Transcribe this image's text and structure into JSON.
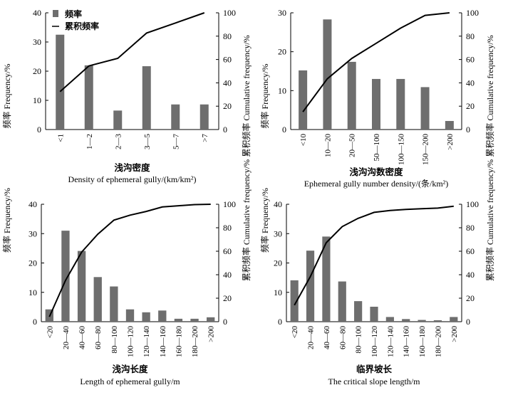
{
  "y_left_label": "频率 Frequency/%",
  "y_right_label": "累积频率 Cumulative frequency/%",
  "legend": {
    "bar_label": "频率",
    "line_label": "累积频率"
  },
  "chart_data": [
    {
      "type": "bar",
      "xlabel_cn": "浅沟密度",
      "xlabel_en": "Density of ephemeral gully/(km/km²)",
      "categories": [
        "<1",
        "1—2",
        "2—3",
        "3—5",
        "5—7",
        ">7"
      ],
      "series": [
        {
          "name": "频率",
          "type": "bar",
          "axis": "left",
          "values": [
            32.5,
            22,
            6.5,
            21.7,
            8.6,
            8.6
          ]
        },
        {
          "name": "累积频率",
          "type": "line",
          "axis": "right",
          "values": [
            32.5,
            54.5,
            61,
            82.7,
            91.3,
            100
          ]
        }
      ],
      "ylim_left": [
        0,
        40
      ],
      "yticks_left": [
        0,
        10,
        20,
        30,
        40
      ],
      "ylim_right": [
        0,
        100
      ],
      "yticks_right": [
        0,
        20,
        40,
        60,
        80,
        100
      ],
      "grid": false,
      "legend_position": "top-left"
    },
    {
      "type": "bar",
      "xlabel_cn": "浅沟沟数密度",
      "xlabel_en": "Ephemeral gully number density/(条/km²)",
      "categories": [
        "<10",
        "10—20",
        "20—50",
        "50—100",
        "100—150",
        "150—200",
        ">200"
      ],
      "series": [
        {
          "name": "频率",
          "type": "bar",
          "axis": "left",
          "values": [
            15.2,
            28.3,
            17.4,
            13,
            13,
            10.9,
            2.2
          ]
        },
        {
          "name": "累积频率",
          "type": "line",
          "axis": "right",
          "values": [
            15.2,
            43.5,
            60.9,
            73.9,
            86.9,
            97.8,
            100
          ]
        }
      ],
      "ylim_left": [
        0,
        30
      ],
      "yticks_left": [
        0,
        10,
        20,
        30
      ],
      "ylim_right": [
        0,
        100
      ],
      "yticks_right": [
        0,
        20,
        40,
        60,
        80,
        100
      ],
      "grid": false
    },
    {
      "type": "bar",
      "xlabel_cn": "浅沟长度",
      "xlabel_en": "Length of ephemeral gully/m",
      "categories": [
        "<20",
        "20—40",
        "40—60",
        "60—80",
        "80—100",
        "100—120",
        "120—140",
        "140—160",
        "160—180",
        "180—200",
        ">200"
      ],
      "series": [
        {
          "name": "频率",
          "type": "bar",
          "axis": "left",
          "values": [
            4.2,
            31,
            24.1,
            15.2,
            12,
            4.2,
            3.2,
            3.8,
            1,
            1,
            1.5
          ]
        },
        {
          "name": "累积频率",
          "type": "line",
          "axis": "right",
          "values": [
            4.2,
            35.2,
            59.3,
            74.5,
            86.5,
            90.7,
            93.9,
            97.7,
            98.7,
            99.7,
            100
          ]
        }
      ],
      "ylim_left": [
        0,
        40
      ],
      "yticks_left": [
        0,
        10,
        20,
        30,
        40
      ],
      "ylim_right": [
        0,
        100
      ],
      "yticks_right": [
        0,
        20,
        40,
        60,
        80,
        100
      ],
      "grid": false
    },
    {
      "type": "bar",
      "xlabel_cn": "临界坡长",
      "xlabel_en": "The critical slope length/m",
      "categories": [
        "<20",
        "20—40",
        "40—60",
        "60—80",
        "80—100",
        "100—120",
        "120—140",
        "140—160",
        "160—180",
        "180—200",
        ">200"
      ],
      "series": [
        {
          "name": "频率",
          "type": "bar",
          "axis": "left",
          "values": [
            14.1,
            24.2,
            29,
            13.7,
            7,
            5.1,
            1.6,
            0.9,
            0.6,
            0.5,
            1.6
          ]
        },
        {
          "name": "累积频率",
          "type": "line",
          "axis": "right",
          "values": [
            14.1,
            38.3,
            67.3,
            81,
            88,
            93.1,
            94.7,
            95.6,
            96.2,
            96.7,
            98.3
          ]
        }
      ],
      "ylim_left": [
        0,
        40
      ],
      "yticks_left": [
        0,
        10,
        20,
        30,
        40
      ],
      "ylim_right": [
        0,
        100
      ],
      "yticks_right": [
        0,
        20,
        40,
        60,
        80,
        100
      ],
      "grid": false
    }
  ]
}
